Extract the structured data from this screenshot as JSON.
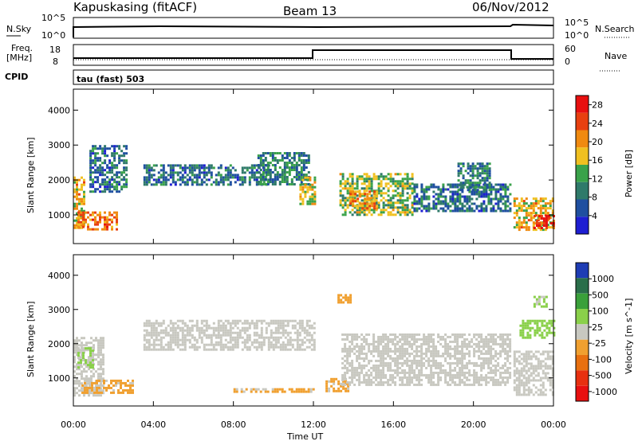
{
  "header": {
    "station": "Kapuskasing (fitACF)",
    "beam": "Beam 13",
    "date": "06/Nov/2012"
  },
  "strip_labels": {
    "nsky": "N.Sky",
    "nsearch": "N.Search",
    "freq_line1": "Freq.",
    "freq_line2": "[MHz]",
    "nave": "Nave",
    "cpid": "CPID",
    "mode": "tau (fast) 503"
  },
  "strip_ticks": {
    "noise_left_top": "10^5",
    "noise_left_bottom": "10^0",
    "noise_right_top": "10^5",
    "noise_right_bottom": "10^0",
    "freq_left_top": "18",
    "freq_left_bottom": "8",
    "nave_right_top": "60",
    "nave_right_bottom": "0"
  },
  "colors": {
    "power_scale": [
      "#1e1ed2",
      "#1f4fa0",
      "#2f7a6a",
      "#3aa24a",
      "#f0c020",
      "#f08a10",
      "#e84010",
      "#e81010"
    ],
    "velocity_scale": [
      "#1e3cb4",
      "#2a6e4a",
      "#3aa03a",
      "#8ad04a",
      "#c8c8c0",
      "#f0a030",
      "#e87010",
      "#e83010",
      "#e81010"
    ],
    "gray_sample": "#c2c2ba"
  },
  "chart_data": [
    {
      "type": "heatmap",
      "title": "",
      "xlabel": "Time UT",
      "ylabel": "Slant Range [km]",
      "x_ticks": [
        "00:00",
        "04:00",
        "08:00",
        "12:00",
        "16:00",
        "20:00",
        "00:00"
      ],
      "y_ticks": [
        "1000",
        "2000",
        "3000",
        "4000"
      ],
      "xlim": [
        0,
        24
      ],
      "ylim": [
        180,
        4600
      ],
      "colorbar": {
        "label": "Power [dB]",
        "ticks": [
          "4",
          "8",
          "12",
          "16",
          "20",
          "24",
          "28"
        ],
        "range": [
          0,
          30
        ]
      },
      "regions": [
        {
          "t0": 0.0,
          "t1": 0.5,
          "r0": 600,
          "r1": 2100,
          "level": 18
        },
        {
          "t0": 0.2,
          "t1": 2.2,
          "r0": 600,
          "r1": 1100,
          "level": 22
        },
        {
          "t0": 0.8,
          "t1": 2.6,
          "r0": 1700,
          "r1": 3000,
          "level": 8
        },
        {
          "t0": 3.5,
          "t1": 9.8,
          "r0": 1850,
          "r1": 2450,
          "level": 8
        },
        {
          "t0": 9.2,
          "t1": 11.8,
          "r0": 1900,
          "r1": 2800,
          "level": 10
        },
        {
          "t0": 11.3,
          "t1": 12.1,
          "r0": 1300,
          "r1": 2100,
          "level": 16
        },
        {
          "t0": 13.3,
          "t1": 17.0,
          "r0": 1000,
          "r1": 2200,
          "level": 14
        },
        {
          "t0": 13.8,
          "t1": 15.2,
          "r0": 1200,
          "r1": 1700,
          "level": 20
        },
        {
          "t0": 17.0,
          "t1": 21.8,
          "r0": 1100,
          "r1": 1900,
          "level": 8
        },
        {
          "t0": 19.2,
          "t1": 20.8,
          "r0": 1700,
          "r1": 2500,
          "level": 10
        },
        {
          "t0": 22.0,
          "t1": 24.0,
          "r0": 600,
          "r1": 1500,
          "level": 18
        },
        {
          "t0": 23.0,
          "t1": 24.0,
          "r0": 600,
          "r1": 1000,
          "level": 26
        }
      ]
    },
    {
      "type": "heatmap",
      "title": "",
      "xlabel": "Time UT",
      "ylabel": "Slant Range [km]",
      "x_ticks": [
        "00:00",
        "04:00",
        "08:00",
        "12:00",
        "16:00",
        "20:00",
        "00:00"
      ],
      "y_ticks": [
        "1000",
        "2000",
        "3000",
        "4000"
      ],
      "xlim": [
        0,
        24
      ],
      "ylim": [
        180,
        4600
      ],
      "colorbar": {
        "label": "Velocity [m s^-1]",
        "ticks": [
          "1000",
          "500",
          "100",
          "25",
          "-25",
          "-100",
          "-500",
          "-1000"
        ],
        "range": [
          -1200,
          1200
        ]
      },
      "regions": [
        {
          "t0": 0.0,
          "t1": 1.5,
          "r0": 500,
          "r1": 2200,
          "level": 0
        },
        {
          "t0": 0.2,
          "t1": 1.0,
          "r0": 1300,
          "r1": 1900,
          "level": 150
        },
        {
          "t0": 0.4,
          "t1": 3.0,
          "r0": 600,
          "r1": 950,
          "level": -150
        },
        {
          "t0": 3.5,
          "t1": 12.0,
          "r0": 1800,
          "r1": 2700,
          "level": 0
        },
        {
          "t0": 8.0,
          "t1": 12.0,
          "r0": 600,
          "r1": 700,
          "level": -150
        },
        {
          "t0": 12.6,
          "t1": 13.7,
          "r0": 600,
          "r1": 1000,
          "level": -150
        },
        {
          "t0": 13.2,
          "t1": 13.8,
          "r0": 3200,
          "r1": 3450,
          "level": -300
        },
        {
          "t0": 13.4,
          "t1": 21.8,
          "r0": 800,
          "r1": 2300,
          "level": 0
        },
        {
          "t0": 22.0,
          "t1": 24.0,
          "r0": 500,
          "r1": 1800,
          "level": 0
        },
        {
          "t0": 22.3,
          "t1": 24.0,
          "r0": 2200,
          "r1": 2700,
          "level": 200
        },
        {
          "t0": 23.0,
          "t1": 23.6,
          "r0": 3100,
          "r1": 3400,
          "level": 150
        }
      ]
    }
  ]
}
